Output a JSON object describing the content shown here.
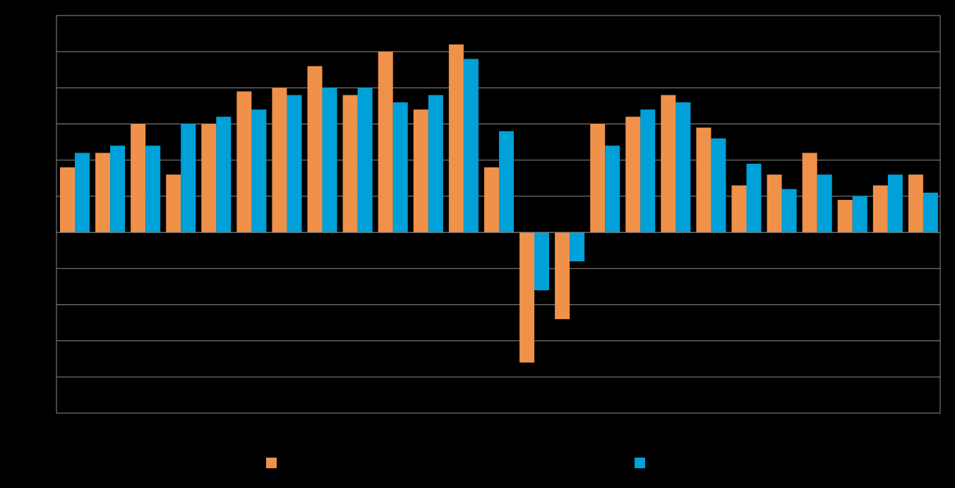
{
  "chart_data": {
    "type": "bar",
    "categories": [
      null,
      null,
      null,
      null,
      null,
      null,
      null,
      null,
      null,
      null,
      null,
      null,
      null,
      null,
      null,
      null,
      null,
      null,
      null,
      null,
      null,
      null,
      null,
      null,
      null
    ],
    "series": [
      {
        "color": "#f0914a",
        "values": [
          1.8,
          2.2,
          3.0,
          1.6,
          3.0,
          3.9,
          4.0,
          4.6,
          3.8,
          5.0,
          3.4,
          5.2,
          1.8,
          -3.6,
          -2.4,
          3.0,
          3.2,
          3.8,
          2.9,
          1.3,
          1.6,
          2.2,
          0.9,
          1.3,
          1.6
        ]
      },
      {
        "color": "#00a0d8",
        "values": [
          2.2,
          2.4,
          2.4,
          3.0,
          3.2,
          3.4,
          3.8,
          4.0,
          4.0,
          3.6,
          3.8,
          4.8,
          2.8,
          -1.6,
          -0.8,
          2.4,
          3.4,
          3.6,
          2.6,
          1.9,
          1.2,
          1.6,
          1.0,
          1.6,
          1.1
        ]
      }
    ],
    "ylim": [
      -5,
      6
    ],
    "yticks": [
      -5,
      -4,
      -3,
      -2,
      -1,
      0,
      1,
      2,
      3,
      4,
      5,
      6
    ],
    "grid": true
  }
}
